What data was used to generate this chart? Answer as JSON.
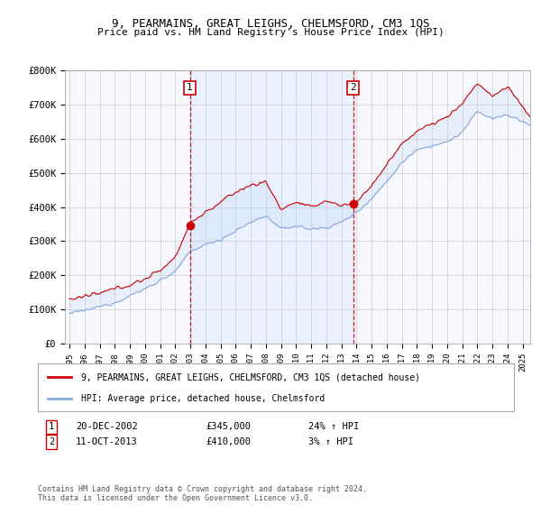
{
  "title": "9, PEARMAINS, GREAT LEIGHS, CHELMSFORD, CM3 1QS",
  "subtitle": "Price paid vs. HM Land Registry's House Price Index (HPI)",
  "ylim": [
    0,
    800000
  ],
  "yticks": [
    0,
    100000,
    200000,
    300000,
    400000,
    500000,
    600000,
    700000,
    800000
  ],
  "ytick_labels": [
    "£0",
    "£100K",
    "£200K",
    "£300K",
    "£400K",
    "£500K",
    "£600K",
    "£700K",
    "£800K"
  ],
  "x_start_year": 1995,
  "x_end_year": 2025,
  "sale1_year": 2002.97,
  "sale1_price": 345000,
  "sale2_year": 2013.78,
  "sale2_price": 410000,
  "line_color_property": "#cc0000",
  "line_color_hpi": "#88aadd",
  "fill_color": "#ddeeff",
  "marker_box_color": "#cc0000",
  "background_color": "#ffffff",
  "plot_bg_color": "#f8f8ff",
  "grid_color": "#cccccc",
  "legend_label_property": "9, PEARMAINS, GREAT LEIGHS, CHELMSFORD, CM3 1QS (detached house)",
  "legend_label_hpi": "HPI: Average price, detached house, Chelmsford",
  "note1_date": "20-DEC-2002",
  "note1_price": "£345,000",
  "note1_hpi": "24% ↑ HPI",
  "note2_date": "11-OCT-2013",
  "note2_price": "£410,000",
  "note2_hpi": "3% ↑ HPI",
  "footer": "Contains HM Land Registry data © Crown copyright and database right 2024.\nThis data is licensed under the Open Government Licence v3.0."
}
